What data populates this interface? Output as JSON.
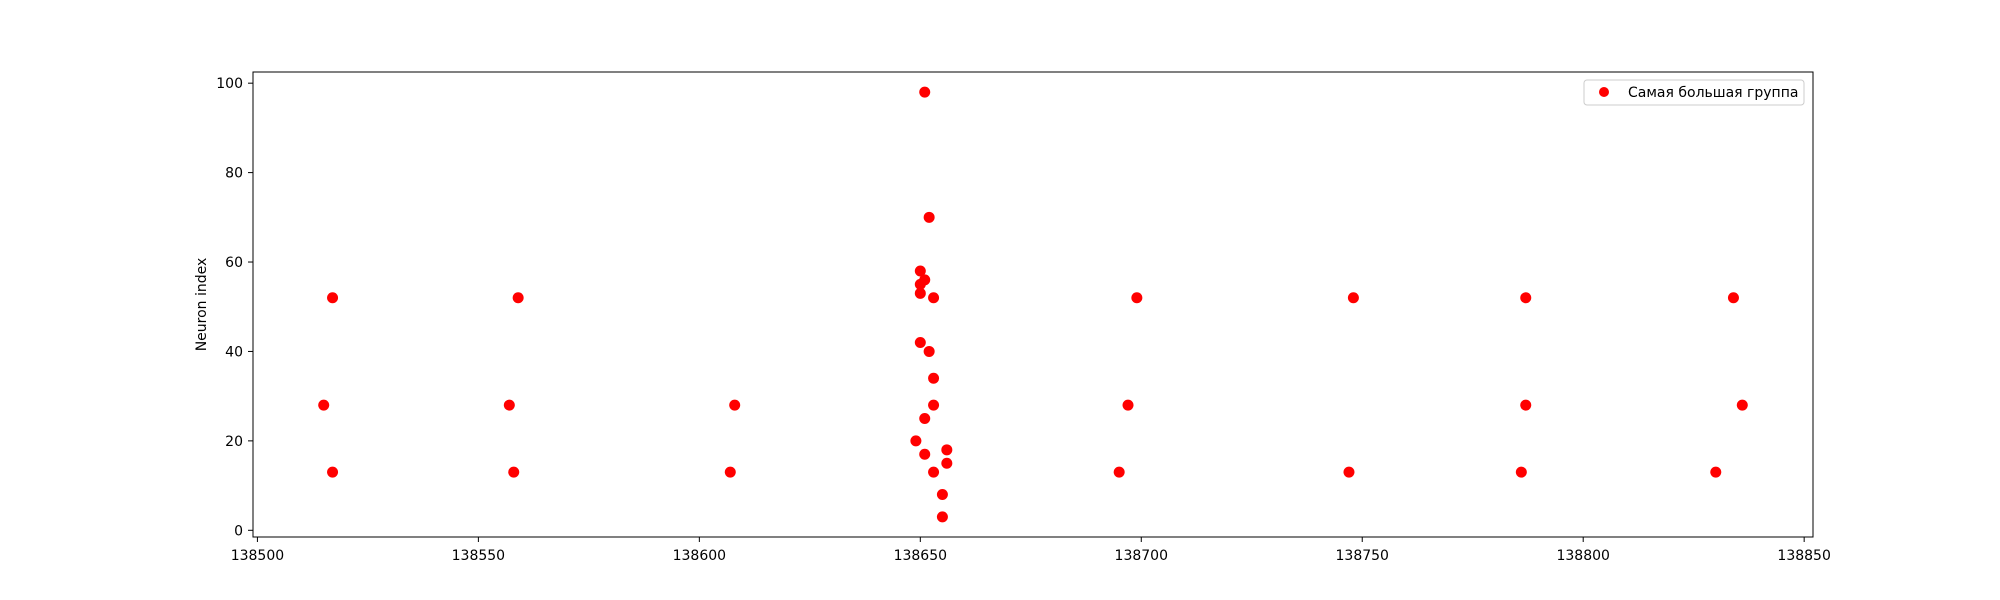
{
  "chart_data": {
    "type": "scatter",
    "title": "",
    "xlabel": "",
    "ylabel": "Neuron index",
    "xlim": [
      138499,
      138852
    ],
    "ylim": [
      -1.5,
      102.5
    ],
    "xticks": [
      138500,
      138550,
      138600,
      138650,
      138700,
      138750,
      138800,
      138850
    ],
    "yticks": [
      0,
      20,
      40,
      60,
      80,
      100
    ],
    "grid": false,
    "legend": {
      "position": "top-right"
    },
    "colors": {
      "series": "#ff0000",
      "axis": "#000000",
      "legend_border": "#cccccc"
    },
    "series": [
      {
        "name": "Самая большая группа",
        "x": [
          138515,
          138517,
          138517,
          138557,
          138558,
          138559,
          138607,
          138608,
          138649,
          138650,
          138650,
          138650,
          138650,
          138651,
          138651,
          138651,
          138651,
          138652,
          138652,
          138653,
          138653,
          138653,
          138653,
          138655,
          138655,
          138656,
          138656,
          138695,
          138697,
          138699,
          138747,
          138748,
          138786,
          138787,
          138787,
          138830,
          138834,
          138836
        ],
        "y": [
          28,
          13,
          52,
          28,
          13,
          52,
          13,
          28,
          20,
          55,
          53,
          42,
          58,
          17,
          25,
          56,
          98,
          70,
          40,
          34,
          28,
          52,
          13,
          8,
          3,
          18,
          15,
          13,
          28,
          52,
          13,
          52,
          13,
          52,
          28,
          13,
          52,
          28
        ]
      }
    ]
  }
}
